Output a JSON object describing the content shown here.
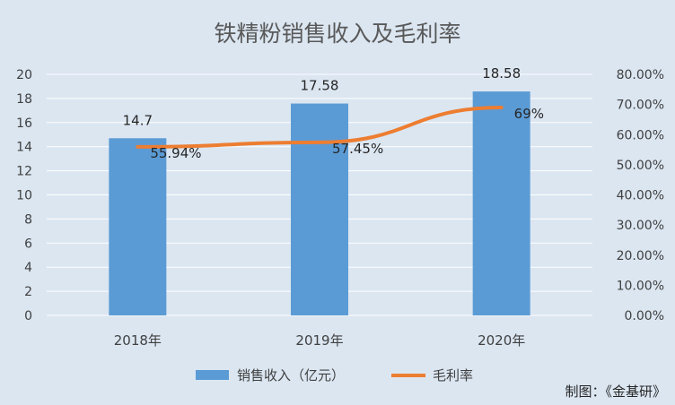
{
  "chart_data": {
    "type": "bar",
    "title": "铁精粉销售收入及毛利率",
    "categories": [
      "2018年",
      "2019年",
      "2020年"
    ],
    "series": [
      {
        "name": "销售收入（亿元）",
        "type": "bar",
        "axis": "left",
        "values": [
          14.7,
          17.58,
          18.58
        ],
        "labels": [
          "14.7",
          "17.58",
          "18.58"
        ],
        "color": "#5b9bd5"
      },
      {
        "name": "毛利率",
        "type": "line",
        "axis": "right",
        "values": [
          55.94,
          57.45,
          69
        ],
        "labels": [
          "55.94%",
          "57.45%",
          "69%"
        ],
        "color": "#ed7d31"
      }
    ],
    "y_left": {
      "min": 0,
      "max": 20,
      "step": 2,
      "ticks": [
        "0",
        "2",
        "4",
        "6",
        "8",
        "10",
        "12",
        "14",
        "16",
        "18",
        "20"
      ]
    },
    "y_right": {
      "min": 0,
      "max": 80,
      "step": 10,
      "ticks": [
        "0.00%",
        "10.00%",
        "20.00%",
        "30.00%",
        "40.00%",
        "50.00%",
        "60.00%",
        "70.00%",
        "80.00%"
      ]
    },
    "grid": true,
    "legend_position": "bottom"
  },
  "source_note": "制图：《金基研》",
  "colors": {
    "background": "#dbe6f1",
    "gridline": "#ffffff",
    "bar": "#5b9bd5",
    "line": "#ed7d31"
  }
}
